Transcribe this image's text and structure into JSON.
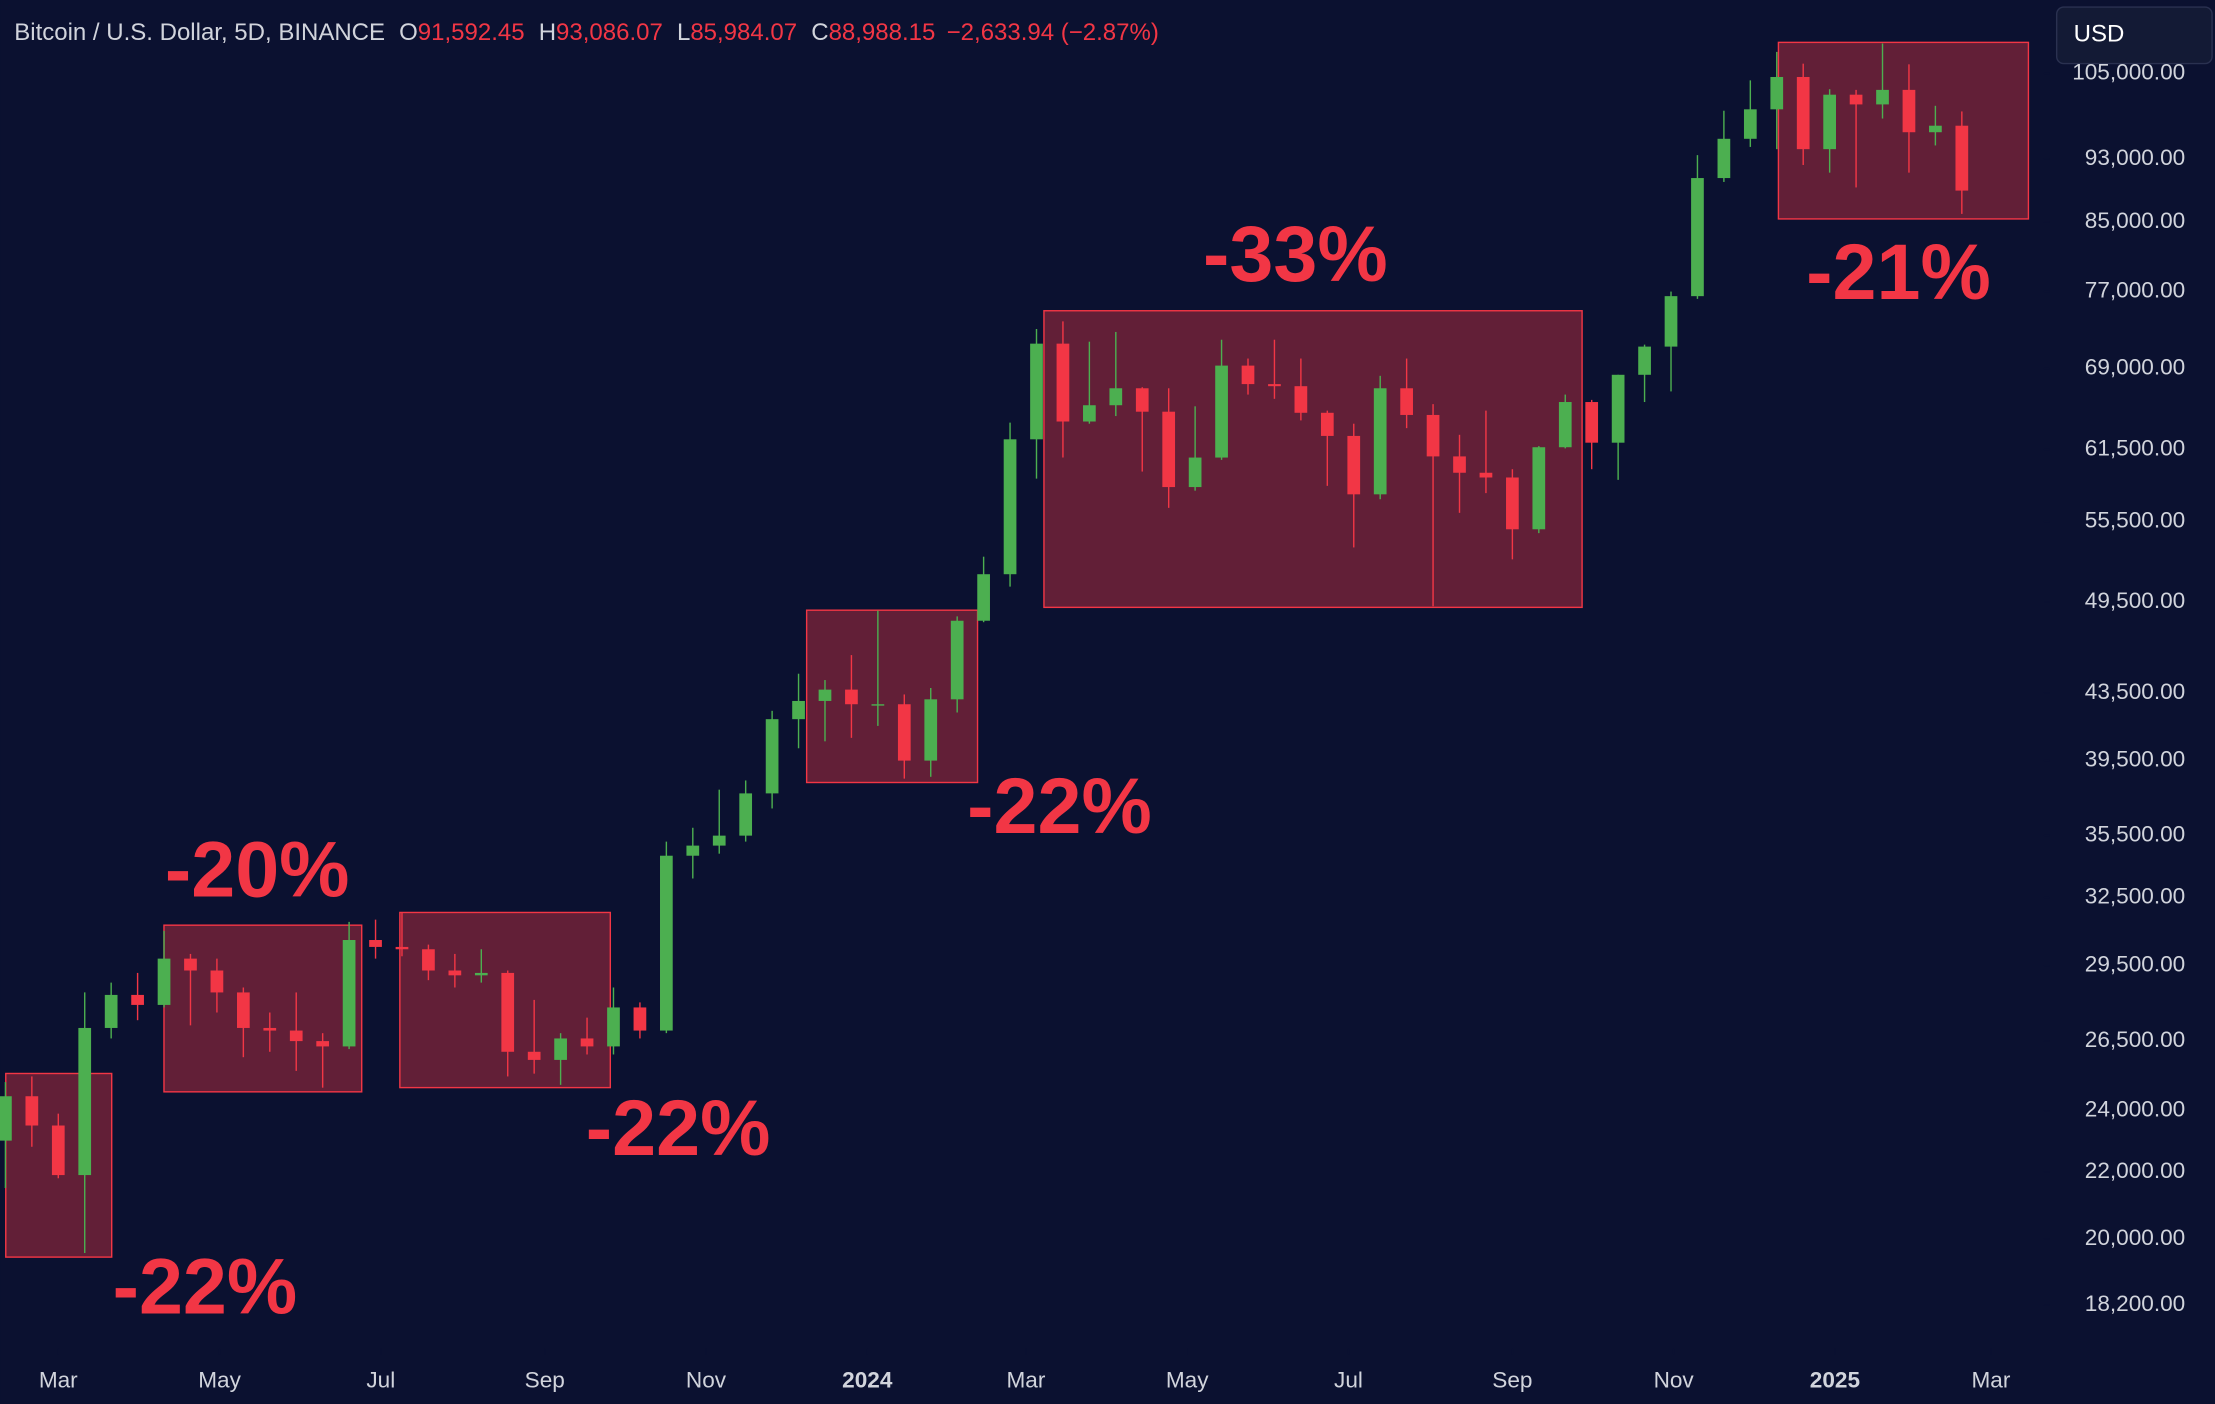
{
  "header": {
    "symbol": "Bitcoin / U.S. Dollar, 5D, BINANCE",
    "ohlc": [
      {
        "key": "O",
        "value": "91,592.45"
      },
      {
        "key": "H",
        "value": "93,086.07"
      },
      {
        "key": "L",
        "value": "85,984.07"
      },
      {
        "key": "C",
        "value": "88,988.15"
      }
    ],
    "change": "−2,633.94 (−2.87%)",
    "currency_button": "USD"
  },
  "chart_data": {
    "type": "candlestick",
    "log_scale": true,
    "up_color": "#4caf50",
    "down_color": "#f23645",
    "open": [
      23000,
      24500,
      23500,
      21900,
      27000,
      28300,
      27900,
      29800,
      29300,
      28400,
      27000,
      26900,
      26500,
      26300,
      30600,
      30300,
      30200,
      29300,
      29100,
      29200,
      26100,
      25800,
      26600,
      26300,
      27800,
      26900,
      34500,
      35000,
      35500,
      37700,
      41900,
      43000,
      43700,
      42800,
      42800,
      39500,
      43100,
      48200,
      51500,
      62400,
      71500,
      64000,
      65500,
      67100,
      64900,
      58300,
      60800,
      69300,
      67500,
      67300,
      64800,
      62700,
      57700,
      67100,
      64600,
      60900,
      59500,
      59100,
      54900,
      61700,
      65800,
      62100,
      68400,
      71200,
      76500,
      90500,
      95700,
      99800,
      104500,
      94300,
      101900,
      100500,
      102600,
      96600,
      97500
    ],
    "high": [
      25000,
      25200,
      23900,
      28400,
      28800,
      29200,
      31000,
      30000,
      29800,
      28600,
      27600,
      28400,
      26800,
      31400,
      31500,
      31800,
      30400,
      30000,
      30200,
      29300,
      28100,
      26800,
      27400,
      28600,
      28000,
      35200,
      35900,
      37900,
      38400,
      42400,
      44700,
      44300,
      45900,
      48900,
      43400,
      43800,
      48500,
      52800,
      63900,
      73000,
      73800,
      71700,
      72700,
      67200,
      67100,
      65400,
      71900,
      70000,
      71900,
      70000,
      65000,
      63800,
      68300,
      70000,
      65600,
      62800,
      65000,
      59800,
      61800,
      66500,
      66000,
      68400,
      71400,
      77000,
      93500,
      99600,
      104000,
      108300,
      106500,
      102700,
      102600,
      109600,
      106400,
      100300,
      99500
    ],
    "low": [
      21500,
      22800,
      21800,
      19600,
      26600,
      27300,
      27800,
      27100,
      27600,
      25900,
      26100,
      25400,
      24800,
      26200,
      29800,
      29900,
      28900,
      28600,
      28800,
      25200,
      25300,
      24900,
      26000,
      26000,
      26600,
      26800,
      33400,
      34600,
      35200,
      36900,
      40200,
      40600,
      40800,
      41500,
      38500,
      38600,
      42300,
      48100,
      50600,
      59000,
      60800,
      63800,
      64500,
      59600,
      56600,
      58000,
      60600,
      66500,
      66100,
      64100,
      58400,
      53500,
      57300,
      63400,
      49200,
      56200,
      57800,
      52600,
      54600,
      61600,
      59800,
      58900,
      65800,
      66800,
      76200,
      90000,
      94600,
      94300,
      92200,
      91200,
      89300,
      98500,
      91200,
      94800,
      86000
    ],
    "close": [
      24500,
      23500,
      21900,
      27000,
      28300,
      27900,
      29800,
      29300,
      28400,
      27000,
      26900,
      26500,
      26300,
      30600,
      30300,
      30200,
      29300,
      29100,
      29200,
      26100,
      25800,
      26600,
      26300,
      27800,
      26900,
      34500,
      35000,
      35500,
      37700,
      41900,
      43000,
      43700,
      42800,
      42800,
      39500,
      43100,
      48200,
      51500,
      62400,
      71500,
      64000,
      65500,
      67100,
      64900,
      58300,
      60800,
      69300,
      67500,
      67300,
      64800,
      62700,
      57700,
      67100,
      64600,
      60900,
      59500,
      59100,
      54900,
      61700,
      65800,
      62100,
      68400,
      71200,
      76500,
      90500,
      95700,
      99800,
      104500,
      94300,
      101900,
      100500,
      102600,
      96600,
      97500,
      88900
    ],
    "xlim": [
      -0.2,
      77
    ],
    "xticks": [
      {
        "value": 2,
        "label": "Mar"
      },
      {
        "value": 8.1,
        "label": "May"
      },
      {
        "value": 14.2,
        "label": "Jul"
      },
      {
        "value": 20.4,
        "label": "Sep"
      },
      {
        "value": 26.5,
        "label": "Nov"
      },
      {
        "value": 32.6,
        "label": "2024"
      },
      {
        "value": 38.6,
        "label": "Mar"
      },
      {
        "value": 44.7,
        "label": "May"
      },
      {
        "value": 50.8,
        "label": "Jul"
      },
      {
        "value": 57,
        "label": "Sep"
      },
      {
        "value": 63.1,
        "label": "Nov"
      },
      {
        "value": 69.2,
        "label": "2025"
      },
      {
        "value": 75.1,
        "label": "Mar"
      }
    ],
    "ylim": [
      17100,
      116600
    ],
    "yticks": [
      {
        "value": 105000,
        "label": "105,000.00"
      },
      {
        "value": 93000,
        "label": "93,000.00"
      },
      {
        "value": 85000,
        "label": "85,000.00"
      },
      {
        "value": 77000,
        "label": "77,000.00"
      },
      {
        "value": 69000,
        "label": "69,000.00"
      },
      {
        "value": 61500,
        "label": "61,500.00"
      },
      {
        "value": 55500,
        "label": "55,500.00"
      },
      {
        "value": 49500,
        "label": "49,500.00"
      },
      {
        "value": 43500,
        "label": "43,500.00"
      },
      {
        "value": 39500,
        "label": "39,500.00"
      },
      {
        "value": 35500,
        "label": "35,500.00"
      },
      {
        "value": 32500,
        "label": "32,500.00"
      },
      {
        "value": 29500,
        "label": "29,500.00"
      },
      {
        "value": 26500,
        "label": "26,500.00"
      },
      {
        "value": 24000,
        "label": "24,000.00"
      },
      {
        "value": 22000,
        "label": "22,000.00"
      },
      {
        "value": 20000,
        "label": "20,000.00"
      },
      {
        "value": 18200,
        "label": "18,200.00"
      }
    ],
    "annotations": [
      "-22%",
      "-20%",
      "-22%",
      "-22%",
      "-33%",
      "-21%"
    ]
  }
}
